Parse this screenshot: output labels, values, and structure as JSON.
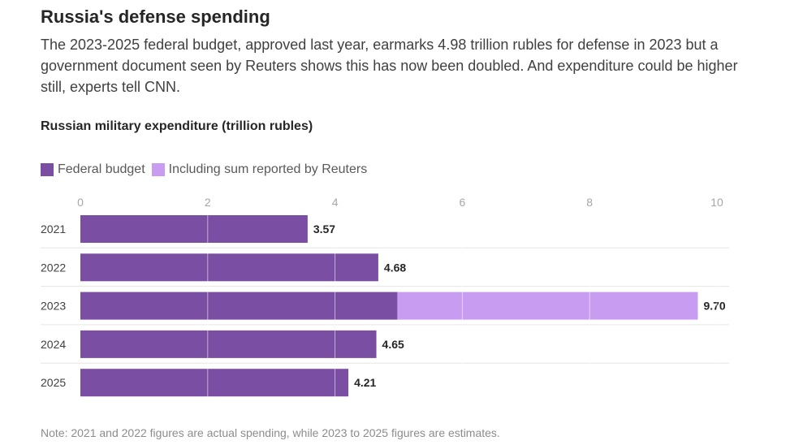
{
  "header": {
    "title": "Russia's defense spending",
    "subtitle": "The 2023-2025 federal budget, approved last year, earmarks 4.98 trillion rubles for defense in 2023 but a government document seen by Reuters shows this has now been doubled. And expenditure could be higher still, experts tell CNN."
  },
  "footer": {
    "note": "Note: 2021 and 2022 figures are actual spending, while 2023 to 2025 figures are estimates."
  },
  "colors": {
    "federal": "#7a4ea3",
    "reuters": "#c89cf0",
    "gridline": "#e6e6e6",
    "axis_text": "#a6a6a6"
  },
  "chart_data": {
    "type": "bar",
    "orientation": "horizontal",
    "stacked": true,
    "title": "Russian military expenditure (trillion rubles)",
    "legend_position": "top-left",
    "categories": [
      "2021",
      "2022",
      "2023",
      "2024",
      "2025"
    ],
    "series": [
      {
        "name": "Federal budget",
        "values": [
          3.57,
          4.68,
          4.98,
          4.65,
          4.21
        ]
      },
      {
        "name": "Including sum reported by Reuters",
        "values": [
          0,
          0,
          4.72,
          0,
          0
        ]
      }
    ],
    "totals": [
      3.57,
      4.68,
      9.7,
      4.65,
      4.21
    ],
    "total_labels": [
      "3.57",
      "4.68",
      "9.70",
      "4.65",
      "4.21"
    ],
    "xlim": [
      0,
      10
    ],
    "xticks": [
      0,
      2,
      4,
      6,
      8,
      10
    ],
    "grid": true
  }
}
